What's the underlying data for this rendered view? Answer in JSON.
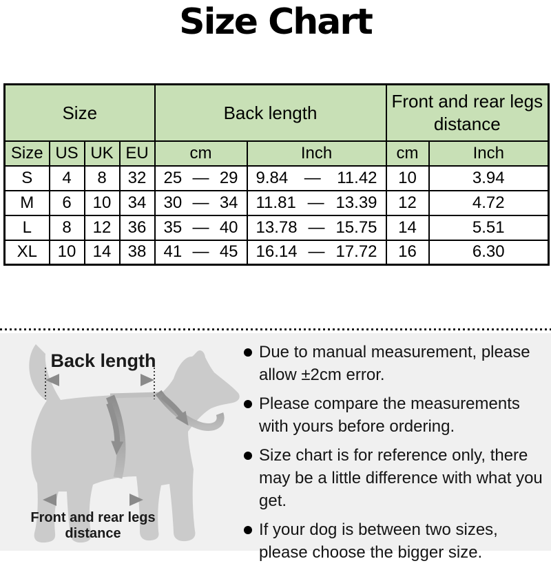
{
  "title": "Size Chart",
  "table": {
    "group_headers": [
      {
        "label": "Size",
        "colspan": 4
      },
      {
        "label": "Back length",
        "colspan": 2
      },
      {
        "label": "Front and rear legs distance",
        "colspan": 2
      }
    ],
    "column_headers": [
      "Size",
      "US",
      "UK",
      "EU",
      "cm",
      "Inch",
      "cm",
      "Inch"
    ],
    "dash": "—",
    "rows": [
      {
        "size": "S",
        "us": "4",
        "uk": "8",
        "eu": "32",
        "back_cm": {
          "min": "25",
          "max": "29"
        },
        "back_inch": {
          "min": "9.84",
          "max": "11.42"
        },
        "legs_cm": "10",
        "legs_inch": "3.94"
      },
      {
        "size": "M",
        "us": "6",
        "uk": "10",
        "eu": "34",
        "back_cm": {
          "min": "30",
          "max": "34"
        },
        "back_inch": {
          "min": "11.81",
          "max": "13.39"
        },
        "legs_cm": "12",
        "legs_inch": "4.72"
      },
      {
        "size": "L",
        "us": "8",
        "uk": "12",
        "eu": "36",
        "back_cm": {
          "min": "35",
          "max": "40"
        },
        "back_inch": {
          "min": "13.78",
          "max": "15.75"
        },
        "legs_cm": "14",
        "legs_inch": "5.51"
      },
      {
        "size": "XL",
        "us": "10",
        "uk": "14",
        "eu": "38",
        "back_cm": {
          "min": "41",
          "max": "45"
        },
        "back_inch": {
          "min": "16.14",
          "max": "17.72"
        },
        "legs_cm": "16",
        "legs_inch": "6.30"
      }
    ]
  },
  "diagram": {
    "back_length_label": "Back length",
    "legs_distance_label_line1": "Front and rear legs",
    "legs_distance_label_line2": "distance"
  },
  "notes": [
    "Due to manual measurement, please allow ±2cm error.",
    "Please compare the measurements with yours before ordering.",
    "Size chart is for reference only, there may be a little difference with what you get.",
    "If your dog is between two sizes, please choose the bigger size."
  ],
  "colors": {
    "header_green": "#c8e0b6",
    "table_border": "#000000",
    "panel_bg": "#f0f0f0",
    "dog_gray": "#cbcbcb",
    "harness_gray": "#8f8f8f",
    "arrow_gray": "#8a8a8a",
    "text": "#111111"
  },
  "chart_data": {
    "type": "table",
    "title": "Size Chart",
    "columns": [
      "Size",
      "US",
      "UK",
      "EU",
      "Back length (cm)",
      "Back length (Inch)",
      "Front and rear legs distance (cm)",
      "Front and rear legs distance (Inch)"
    ],
    "rows": [
      [
        "S",
        "4",
        "8",
        "32",
        "25 — 29",
        "9.84 — 11.42",
        "10",
        "3.94"
      ],
      [
        "M",
        "6",
        "10",
        "34",
        "30 — 34",
        "11.81 — 13.39",
        "12",
        "4.72"
      ],
      [
        "L",
        "8",
        "12",
        "36",
        "35 — 40",
        "13.78 — 15.75",
        "14",
        "5.51"
      ],
      [
        "XL",
        "10",
        "14",
        "38",
        "41 — 45",
        "16.14 — 17.72",
        "16",
        "6.30"
      ]
    ]
  }
}
